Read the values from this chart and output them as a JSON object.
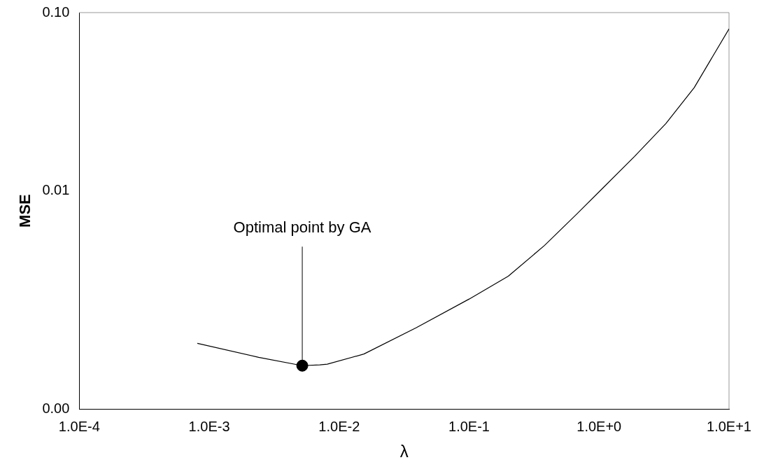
{
  "chart_data": {
    "type": "line",
    "xlabel": "λ",
    "ylabel": "MSE",
    "log": "xy",
    "grid": false,
    "legend": false,
    "marker": "none",
    "line_style": "solid",
    "xlim": [
      0.0001,
      10
    ],
    "ylim": [
      0.0006,
      0.1
    ],
    "xticks": [
      {
        "value": 0.0001,
        "label": "1.0E-4"
      },
      {
        "value": 0.001,
        "label": "1.0E-3"
      },
      {
        "value": 0.01,
        "label": "1.0E-2"
      },
      {
        "value": 0.1,
        "label": "1.0E-1"
      },
      {
        "value": 1,
        "label": "1.0E+0"
      },
      {
        "value": 10,
        "label": "1.0E+1"
      }
    ],
    "yticks": [
      {
        "value": 0.0006,
        "label": "0.00"
      },
      {
        "value": 0.01,
        "label": "0.01"
      },
      {
        "value": 0.1,
        "label": "0.10"
      }
    ],
    "series": [
      {
        "color": "#000000",
        "x": [
          0.00081,
          0.0024,
          0.0052,
          0.0071,
          0.0081,
          0.0155,
          0.039,
          0.1,
          0.2,
          0.38,
          0.67,
          1.07,
          1.87,
          3.27,
          5.4,
          10
        ],
        "values": [
          0.0014,
          0.00117,
          0.00105,
          0.00106,
          0.00107,
          0.00122,
          0.00171,
          0.00248,
          0.00333,
          0.00495,
          0.0074,
          0.0104,
          0.0156,
          0.0239,
          0.038,
          0.081
        ]
      },
      {
        "type": "scatter",
        "color": "#000000",
        "marker": "circle",
        "x": [
          0.0052
        ],
        "values": [
          0.00105
        ]
      }
    ],
    "annotations": [
      {
        "text": "Optimal point by GA",
        "x": 0.0052,
        "y": 0.00105
      }
    ]
  }
}
